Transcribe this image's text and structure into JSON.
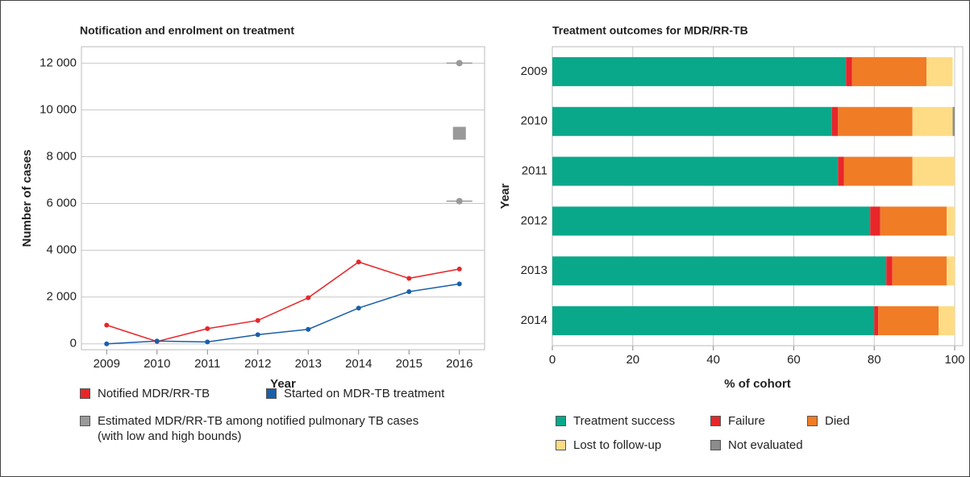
{
  "chart_data": [
    {
      "type": "line",
      "title": "Notification and enrolment on treatment",
      "x_label": "Year",
      "y_label": "Number of cases",
      "x": [
        2009,
        2010,
        2011,
        2012,
        2013,
        2014,
        2015,
        2016
      ],
      "xlim": [
        2008.5,
        2016.5
      ],
      "xticks": [
        2009,
        2010,
        2011,
        2012,
        2013,
        2014,
        2015,
        2016
      ],
      "ylim": [
        -250,
        12700
      ],
      "yticks": [
        0,
        {
          "value": 2000,
          "label": "2 000"
        },
        {
          "value": 4000,
          "label": "4 000"
        },
        {
          "value": 6000,
          "label": "6 000"
        },
        {
          "value": 8000,
          "label": "8 000"
        },
        {
          "value": 10000,
          "label": "10 000"
        },
        {
          "value": 12000,
          "label": "12 000"
        }
      ],
      "grid": true,
      "series": [
        {
          "name": "Notified MDR/RR-TB",
          "color": "#e8262a",
          "values": [
            800,
            100,
            650,
            1000,
            1970,
            3500,
            2800,
            3200
          ]
        },
        {
          "name": "Started on MDR-TB treatment",
          "color": "#1a5fa8",
          "values": [
            0,
            120,
            80,
            390,
            620,
            1530,
            2230,
            2560
          ]
        }
      ],
      "estimates": {
        "name": "Estimated MDR/RR-TB among notified pulmonary TB cases (with low and high bounds)",
        "color": "#999999",
        "x": [
          2016
        ],
        "values": [
          9000
        ],
        "low": [
          6100
        ],
        "high": [
          12000
        ]
      }
    },
    {
      "type": "hbar_stacked",
      "title": "Treatment outcomes for MDR/RR-TB",
      "x_label": "% of cohort",
      "y_label": "Year",
      "categories": [
        "2009",
        "2010",
        "2011",
        "2012",
        "2013",
        "2014"
      ],
      "xlim": [
        0,
        102
      ],
      "xticks": [
        0,
        20,
        40,
        60,
        80,
        100
      ],
      "grid": true,
      "series": [
        {
          "name": "Treatment success",
          "color": "#0aa88a",
          "values": [
            73,
            69.5,
            71,
            79,
            83,
            80
          ]
        },
        {
          "name": "Failure",
          "color": "#e8262a",
          "values": [
            1.5,
            1.5,
            1.5,
            2.5,
            1.5,
            1
          ]
        },
        {
          "name": "Died",
          "color": "#f07c26",
          "values": [
            18.5,
            18.5,
            17,
            16.5,
            13.5,
            15
          ]
        },
        {
          "name": "Lost to follow-up",
          "color": "#fddc85",
          "values": [
            6.5,
            10,
            10.5,
            2,
            2,
            4
          ]
        },
        {
          "name": "Not evaluated",
          "color": "#8c8c8c",
          "values": [
            0,
            0.5,
            0,
            0,
            0,
            0
          ]
        }
      ]
    }
  ]
}
